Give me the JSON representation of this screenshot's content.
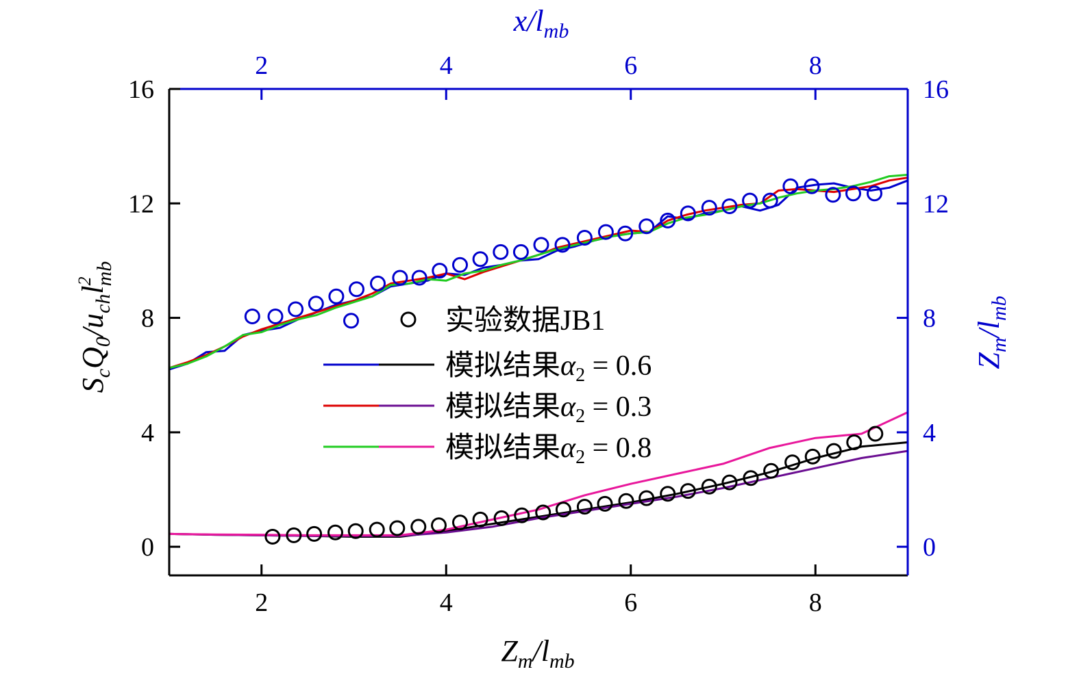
{
  "chart_data": {
    "type": "line",
    "axes": {
      "bottom": {
        "label_main": "Z",
        "label_sub": "m",
        "label_tail": "/l",
        "label_tail_sub": "mb",
        "range": [
          1,
          9
        ],
        "ticks": [
          2,
          4,
          6,
          8
        ],
        "color": "#000000"
      },
      "top": {
        "label_main": "x",
        "label_tail": "/l",
        "label_tail_sub": "mb",
        "range": [
          1,
          9
        ],
        "ticks": [
          2,
          4,
          6,
          8
        ],
        "color": "#0000cc"
      },
      "left": {
        "label_a": "S",
        "label_a_sub": "c",
        "label_b": "Q",
        "label_b_sub": "0",
        "label_c": "/u",
        "label_c_sub": "ch",
        "label_d": "l",
        "label_d_sup": "2",
        "label_d_sub": "mb",
        "range": [
          -1,
          16
        ],
        "ticks": [
          0,
          4,
          8,
          12,
          16
        ],
        "color": "#000000"
      },
      "right": {
        "label_main": "Z",
        "label_sub": "m",
        "label_tail": "/l",
        "label_tail_sub": "mb",
        "range": [
          -1,
          16
        ],
        "ticks": [
          0,
          4,
          8,
          12,
          16
        ],
        "color": "#0000cc"
      }
    },
    "legend": {
      "placement": "center",
      "entries": [
        {
          "text": "实验数据JB1",
          "marker": "circle",
          "colors": [
            "#000000"
          ]
        },
        {
          "text": "模拟结果",
          "greek": "α",
          "sub": "2",
          "eq": " = 0.6",
          "colors": [
            "#0000cc",
            "#000000"
          ]
        },
        {
          "text": "模拟结果",
          "greek": "α",
          "sub": "2",
          "eq": " = 0.3",
          "colors": [
            "#dd0000",
            "#6a0d91"
          ]
        },
        {
          "text": "模拟结果",
          "greek": "α",
          "sub": "2",
          "eq": " = 0.8",
          "colors": [
            "#22cc22",
            "#e8179b"
          ]
        }
      ]
    },
    "series": [
      {
        "name": "实验数据JB1",
        "axis": "top-right",
        "kind": "scatter",
        "color": "#0000cc",
        "x": [
          1.9,
          2.15,
          2.37,
          2.59,
          2.81,
          2.97,
          3.03,
          3.26,
          3.5,
          3.71,
          3.93,
          4.15,
          4.37,
          4.59,
          4.81,
          5.03,
          5.26,
          5.5,
          5.73,
          5.94,
          6.17,
          6.4,
          6.62,
          6.85,
          7.07,
          7.29,
          7.51,
          7.73,
          7.96,
          8.19,
          8.41,
          8.64
        ],
        "y": [
          8.05,
          8.05,
          8.3,
          8.5,
          8.75,
          7.9,
          9.0,
          9.2,
          9.4,
          9.4,
          9.65,
          9.85,
          10.05,
          10.3,
          10.3,
          10.55,
          10.55,
          10.8,
          11.0,
          10.95,
          11.2,
          11.4,
          11.65,
          11.85,
          11.9,
          12.1,
          12.1,
          12.6,
          12.6,
          12.3,
          12.35,
          12.35
        ]
      },
      {
        "name": "实验数据JB1",
        "axis": "bottom-left",
        "kind": "scatter",
        "color": "#000000",
        "x": [
          2.12,
          2.35,
          2.57,
          2.8,
          3.02,
          3.25,
          3.47,
          3.7,
          3.92,
          4.15,
          4.37,
          4.6,
          4.82,
          5.05,
          5.27,
          5.5,
          5.72,
          5.95,
          6.17,
          6.4,
          6.62,
          6.85,
          7.07,
          7.3,
          7.52,
          7.75,
          7.97,
          8.2,
          8.42,
          8.65
        ],
        "y": [
          0.35,
          0.4,
          0.45,
          0.5,
          0.55,
          0.6,
          0.65,
          0.7,
          0.75,
          0.85,
          0.95,
          1.0,
          1.1,
          1.2,
          1.3,
          1.4,
          1.5,
          1.6,
          1.7,
          1.85,
          1.95,
          2.1,
          2.25,
          2.4,
          2.65,
          2.95,
          3.15,
          3.35,
          3.65,
          3.95
        ]
      },
      {
        "name": "模拟结果α2 = 0.6 (x)",
        "axis": "top-right",
        "kind": "line",
        "color": "#0000cc",
        "x": [
          1.0,
          1.2,
          1.4,
          1.6,
          1.8,
          2.0,
          2.2,
          2.4,
          2.6,
          2.8,
          3.0,
          3.2,
          3.4,
          3.6,
          3.8,
          4.0,
          4.2,
          4.4,
          4.6,
          4.8,
          5.0,
          5.2,
          5.4,
          5.6,
          5.8,
          6.0,
          6.2,
          6.4,
          6.6,
          6.8,
          7.0,
          7.2,
          7.4,
          7.6,
          7.8,
          8.0,
          8.2,
          8.4,
          8.6,
          8.8,
          9.0
        ],
        "y": [
          6.2,
          6.4,
          6.8,
          6.85,
          7.4,
          7.55,
          7.65,
          7.95,
          8.2,
          8.45,
          8.6,
          8.75,
          9.1,
          9.2,
          9.3,
          9.55,
          9.5,
          9.75,
          9.85,
          10.0,
          10.05,
          10.35,
          10.5,
          10.7,
          10.85,
          10.95,
          11.0,
          11.55,
          11.45,
          11.65,
          11.75,
          11.9,
          11.75,
          11.95,
          12.55,
          12.65,
          12.7,
          12.55,
          12.45,
          12.55,
          12.8
        ]
      },
      {
        "name": "模拟结果α2 = 0.3 (x)",
        "axis": "top-right",
        "kind": "line",
        "color": "#dd0000",
        "x": [
          1.0,
          1.2,
          1.4,
          1.6,
          1.8,
          2.0,
          2.2,
          2.4,
          2.6,
          2.8,
          3.0,
          3.2,
          3.4,
          3.6,
          3.8,
          4.0,
          4.2,
          4.4,
          4.6,
          4.8,
          5.0,
          5.2,
          5.4,
          5.6,
          5.8,
          6.0,
          6.2,
          6.4,
          6.6,
          6.8,
          7.0,
          7.2,
          7.4,
          7.6,
          7.8,
          8.0,
          8.2,
          8.4,
          8.6,
          8.8,
          9.0
        ],
        "y": [
          6.25,
          6.45,
          6.7,
          7.0,
          7.35,
          7.6,
          7.8,
          8.0,
          8.2,
          8.4,
          8.6,
          8.85,
          9.2,
          9.3,
          9.4,
          9.55,
          9.35,
          9.6,
          9.8,
          10.0,
          10.2,
          10.45,
          10.6,
          10.75,
          10.9,
          11.05,
          11.0,
          11.4,
          11.6,
          11.75,
          11.85,
          11.95,
          12.0,
          12.45,
          12.5,
          12.45,
          12.4,
          12.5,
          12.6,
          12.8,
          12.9
        ]
      },
      {
        "name": "模拟结果α2 = 0.8 (x)",
        "axis": "top-right",
        "kind": "line",
        "color": "#22cc22",
        "x": [
          1.0,
          1.2,
          1.4,
          1.6,
          1.8,
          2.0,
          2.2,
          2.4,
          2.6,
          2.8,
          3.0,
          3.2,
          3.4,
          3.6,
          3.8,
          4.0,
          4.2,
          4.4,
          4.6,
          4.8,
          5.0,
          5.2,
          5.4,
          5.6,
          5.8,
          6.0,
          6.2,
          6.4,
          6.6,
          6.8,
          7.0,
          7.2,
          7.4,
          7.6,
          7.8,
          8.0,
          8.2,
          8.4,
          8.6,
          8.8,
          9.0
        ],
        "y": [
          6.25,
          6.4,
          6.65,
          7.0,
          7.4,
          7.5,
          7.75,
          7.95,
          8.1,
          8.35,
          8.55,
          8.75,
          9.15,
          9.2,
          9.35,
          9.3,
          9.55,
          9.65,
          9.85,
          10.0,
          10.2,
          10.4,
          10.55,
          10.7,
          10.85,
          10.95,
          11.0,
          11.3,
          11.5,
          11.6,
          11.75,
          11.9,
          12.0,
          12.2,
          12.35,
          12.45,
          12.5,
          12.6,
          12.75,
          12.95,
          13.0
        ]
      },
      {
        "name": "模拟结果α2 = 0.6 (Zm)",
        "axis": "bottom-left",
        "kind": "line",
        "color": "#000000",
        "x": [
          1.0,
          1.5,
          2.0,
          2.5,
          3.0,
          3.5,
          4.0,
          4.5,
          5.0,
          5.5,
          6.0,
          6.5,
          7.0,
          7.5,
          8.0,
          8.5,
          9.0
        ],
        "y": [
          0.45,
          0.42,
          0.4,
          0.38,
          0.35,
          0.35,
          0.55,
          0.8,
          1.05,
          1.3,
          1.55,
          1.85,
          2.2,
          2.6,
          3.1,
          3.5,
          3.65
        ]
      },
      {
        "name": "模拟结果α2 = 0.3 (Zm)",
        "axis": "bottom-left",
        "kind": "line",
        "color": "#6a0d91",
        "x": [
          1.0,
          1.5,
          2.0,
          2.5,
          3.0,
          3.5,
          4.0,
          4.5,
          5.0,
          5.5,
          6.0,
          6.5,
          7.0,
          7.5,
          8.0,
          8.5,
          9.0
        ],
        "y": [
          0.45,
          0.42,
          0.4,
          0.38,
          0.38,
          0.38,
          0.5,
          0.7,
          1.0,
          1.25,
          1.5,
          1.75,
          2.05,
          2.4,
          2.75,
          3.1,
          3.35
        ]
      },
      {
        "name": "模拟结果α2 = 0.8 (Zm)",
        "axis": "bottom-left",
        "kind": "line",
        "color": "#e8179b",
        "x": [
          1.0,
          1.5,
          2.0,
          2.5,
          3.0,
          3.5,
          4.0,
          4.5,
          5.0,
          5.5,
          6.0,
          6.5,
          7.0,
          7.5,
          8.0,
          8.5,
          9.0
        ],
        "y": [
          0.45,
          0.43,
          0.42,
          0.4,
          0.4,
          0.4,
          0.6,
          0.95,
          1.3,
          1.8,
          2.2,
          2.55,
          2.9,
          3.45,
          3.8,
          3.95,
          4.7
        ]
      }
    ]
  }
}
